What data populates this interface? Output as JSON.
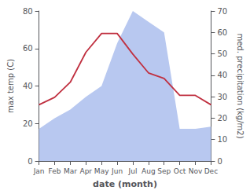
{
  "chart_data": {
    "type": "line",
    "categories": [
      "Jan",
      "Feb",
      "Mar",
      "Apr",
      "May",
      "Jun",
      "Jul",
      "Aug",
      "Sep",
      "Oct",
      "Nov",
      "Dec"
    ],
    "xlabel": "date (month)",
    "ylabel": "max temp (C)",
    "y2label": "med. precipitation (kg/m2)",
    "series": [
      {
        "type": "area",
        "color": "#b8c8f0",
        "axis": "y2",
        "values": [
          15,
          20,
          24,
          30,
          35,
          55,
          70,
          65,
          60,
          15,
          15,
          16
        ]
      },
      {
        "type": "line",
        "color": "#c03040",
        "values": [
          30,
          34,
          42,
          58,
          68,
          68,
          57,
          47,
          44,
          35,
          35,
          30
        ]
      }
    ],
    "ylim": [
      0,
      80
    ],
    "yticks": [
      0,
      20,
      40,
      60,
      80
    ],
    "y2lim": [
      0,
      70
    ],
    "y2ticks": [
      0,
      10,
      20,
      30,
      40,
      50,
      60,
      70
    ],
    "grid": false
  }
}
